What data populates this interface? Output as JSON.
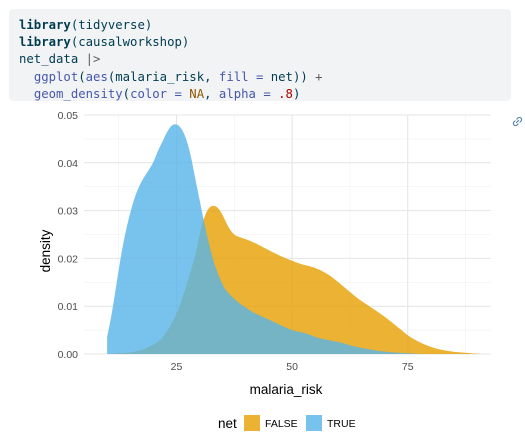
{
  "code": {
    "lines": [
      [
        {
          "t": "library",
          "c": "kw"
        },
        {
          "t": "(tidyverse)",
          "c": ""
        }
      ],
      [
        {
          "t": "library",
          "c": "kw"
        },
        {
          "t": "(causalworkshop)",
          "c": ""
        }
      ],
      [
        {
          "t": "net_data ",
          "c": ""
        },
        {
          "t": "|>",
          "c": "op"
        }
      ],
      [
        {
          "t": "  ",
          "c": ""
        },
        {
          "t": "ggplot",
          "c": "fn"
        },
        {
          "t": "(",
          "c": ""
        },
        {
          "t": "aes",
          "c": "fn"
        },
        {
          "t": "(malaria_risk, ",
          "c": ""
        },
        {
          "t": "fill =",
          "c": "fn"
        },
        {
          "t": " net)) ",
          "c": ""
        },
        {
          "t": "+",
          "c": "op"
        }
      ],
      [
        {
          "t": "  ",
          "c": ""
        },
        {
          "t": "geom_density",
          "c": "fn"
        },
        {
          "t": "(",
          "c": ""
        },
        {
          "t": "color =",
          "c": "fn"
        },
        {
          "t": " ",
          "c": ""
        },
        {
          "t": "NA",
          "c": "na"
        },
        {
          "t": ", ",
          "c": ""
        },
        {
          "t": "alpha =",
          "c": "fn"
        },
        {
          "t": " ",
          "c": ""
        },
        {
          "t": ".8",
          "c": "num"
        },
        {
          "t": ")",
          "c": ""
        }
      ]
    ]
  },
  "chart_data": {
    "type": "area",
    "xlabel": "malaria_risk",
    "ylabel": "density",
    "xlim": [
      5,
      93
    ],
    "ylim": [
      0,
      0.05
    ],
    "x_ticks": [
      25,
      50,
      75
    ],
    "x_tick_labels": [
      "25",
      "50",
      "75"
    ],
    "y_ticks": [
      0,
      0.01,
      0.02,
      0.03,
      0.04,
      0.05
    ],
    "y_tick_labels": [
      "0.00",
      "0.01",
      "0.02",
      "0.03",
      "0.04",
      "0.05"
    ],
    "grid": true,
    "legend": {
      "title": "net",
      "position": "bottom"
    },
    "series": [
      {
        "name": "FALSE",
        "color": "#E69F00",
        "x": [
          10,
          13,
          16,
          19,
          22,
          25,
          27,
          29,
          30,
          31,
          32,
          33,
          34,
          35,
          36,
          37,
          38,
          40,
          42,
          44,
          46,
          48,
          50,
          52,
          55,
          58,
          61,
          64,
          67,
          70,
          73,
          76,
          80,
          84,
          88,
          91
        ],
        "y": [
          0,
          0.0002,
          0.0005,
          0.0015,
          0.0035,
          0.0085,
          0.014,
          0.0205,
          0.025,
          0.0285,
          0.0305,
          0.031,
          0.0305,
          0.029,
          0.027,
          0.0255,
          0.0247,
          0.024,
          0.0232,
          0.0222,
          0.0212,
          0.0203,
          0.0195,
          0.0188,
          0.018,
          0.0165,
          0.0142,
          0.0118,
          0.0098,
          0.0078,
          0.0055,
          0.0033,
          0.0015,
          0.0006,
          0.0002,
          0
        ]
      },
      {
        "name": "TRUE",
        "color": "#56B4E9",
        "x": [
          10,
          11,
          12,
          13,
          14,
          15,
          16,
          17,
          18,
          19,
          20,
          21,
          22,
          23,
          24,
          25,
          26,
          27,
          28,
          29,
          30,
          31,
          32,
          33,
          34,
          35,
          36,
          38,
          40,
          42,
          45,
          48,
          50,
          53,
          56,
          60,
          63,
          66,
          70,
          74,
          76,
          78
        ],
        "y": [
          0.0035,
          0.0085,
          0.0145,
          0.0205,
          0.0255,
          0.0295,
          0.0328,
          0.0352,
          0.037,
          0.0385,
          0.0402,
          0.0425,
          0.0445,
          0.0465,
          0.0478,
          0.048,
          0.0472,
          0.0452,
          0.0418,
          0.037,
          0.0322,
          0.0275,
          0.0232,
          0.0195,
          0.0167,
          0.0145,
          0.013,
          0.0111,
          0.0097,
          0.0085,
          0.0072,
          0.0058,
          0.005,
          0.0043,
          0.0033,
          0.0025,
          0.0017,
          0.0011,
          0.0005,
          0.0002,
          0.0001,
          0
        ]
      }
    ]
  }
}
